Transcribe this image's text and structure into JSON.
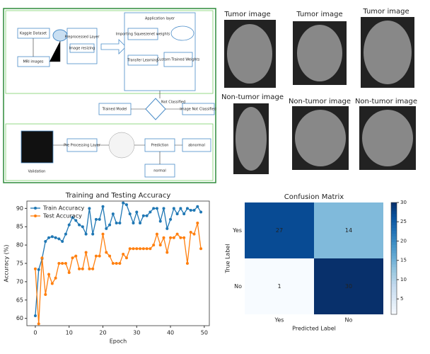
{
  "diagram": {
    "nodes": [
      "Kaggle Dataset",
      "MRI images",
      "Preprocessed Layer",
      "Image resizing",
      "Application layer",
      "Importing Squeezenet weights",
      "Transfer Learning",
      "Custom Trained Weights",
      "Trained Model",
      "Not Classified",
      "Image Not Classified",
      "Validation",
      "Pre Processing Layer",
      "Prediction",
      "abnormal",
      "normal"
    ]
  },
  "images": {
    "labels": [
      "Tumor image",
      "Tumor image",
      "Tumor image",
      "Non-tumor image",
      "Non-tumor image",
      "Non-tumor image"
    ]
  },
  "chart_data": [
    {
      "type": "line",
      "title": "Training and Testing Accuracy",
      "x_label": "Epoch",
      "y_label": "Accuracy (%)",
      "x": [
        0,
        1,
        2,
        3,
        4,
        5,
        6,
        7,
        8,
        9,
        10,
        11,
        12,
        13,
        14,
        15,
        16,
        17,
        18,
        19,
        20,
        21,
        22,
        23,
        24,
        25,
        26,
        27,
        28,
        29,
        30,
        31,
        32,
        33,
        34,
        35,
        36,
        37,
        38,
        39,
        40,
        41,
        42,
        43,
        44,
        45,
        46,
        47,
        48,
        49
      ],
      "series": [
        {
          "name": "Train Accuracy",
          "color": "#1f77b4",
          "values": [
            60.7,
            73.3,
            76.3,
            81,
            82,
            82.3,
            82,
            81.7,
            81,
            83,
            85.5,
            87.5,
            86.7,
            85.5,
            85,
            83,
            90,
            83,
            87,
            87,
            90.5,
            84.5,
            85.5,
            88.5,
            86,
            86,
            91.5,
            91,
            88.5,
            86,
            89,
            86,
            88,
            88,
            89,
            90,
            90,
            86.5,
            90,
            84.5,
            87,
            90,
            88.5,
            90,
            88.5,
            90,
            89.5,
            89.5,
            90.5,
            89
          ]
        },
        {
          "name": "Test Accuracy",
          "color": "#ff7f0e",
          "values": [
            73.5,
            58.5,
            76.5,
            66.5,
            72,
            69.5,
            71,
            75,
            75,
            75,
            72.5,
            76.5,
            77,
            73.5,
            73.5,
            78,
            73.5,
            73.5,
            77,
            77,
            83,
            78,
            77,
            75,
            75,
            75,
            77.5,
            76.5,
            79,
            79,
            79,
            79,
            79,
            79,
            79,
            80,
            83,
            80,
            82,
            78,
            82,
            82,
            83,
            82,
            82,
            75,
            83.5,
            83,
            86,
            79
          ]
        }
      ],
      "xlim": [
        -2.5,
        51.5
      ],
      "xticks": [
        0,
        10,
        20,
        30,
        40,
        50
      ],
      "ylim": [
        58,
        92
      ],
      "yticks": [
        60,
        65,
        70,
        75,
        80,
        85,
        90
      ],
      "legend": "upper left"
    },
    {
      "type": "heatmap",
      "title": "Confusion Matrix",
      "x_label": "Predicted Label",
      "y_label": "True Label",
      "x_categories": [
        "Yes",
        "No"
      ],
      "y_categories": [
        "Yes",
        "No"
      ],
      "values": [
        [
          27,
          14
        ],
        [
          1,
          30
        ]
      ],
      "clim": [
        1,
        30
      ],
      "cticks": [
        5,
        10,
        15,
        20,
        25,
        30
      ],
      "colormap": [
        "#f7fbff",
        "#deebf7",
        "#c6dbef",
        "#9ecae1",
        "#6baed6",
        "#4292c6",
        "#2171b5",
        "#08519c",
        "#08306b"
      ]
    }
  ]
}
